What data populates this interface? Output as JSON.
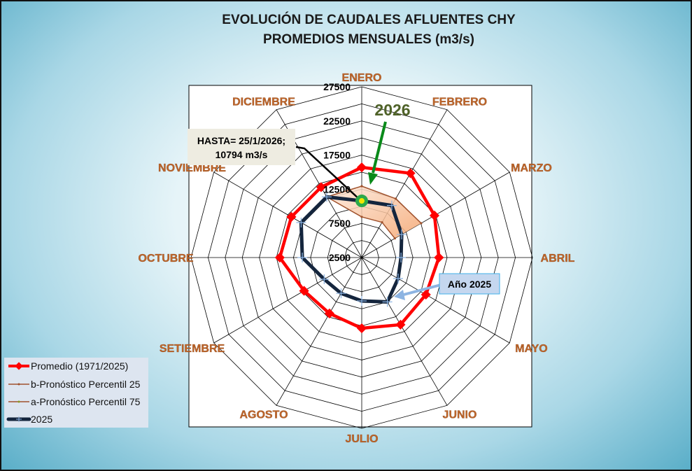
{
  "chart_data": {
    "type": "radar",
    "title": [
      "EVOLUCIÓN DE CAUDALES AFLUENTES CHY",
      "PROMEDIOS MENSUALES (m3/s)"
    ],
    "categories": [
      "ENERO",
      "FEBRERO",
      "MARZO",
      "ABRIL",
      "MAYO",
      "JUNIO",
      "JULIO",
      "AGOSTO",
      "SETIEMBRE",
      "OCTUBRE",
      "NOVIEMBRE",
      "DICIEMBRE"
    ],
    "rlim": [
      2500,
      27500
    ],
    "ring_step": 2500,
    "tick_labels": [
      "2500",
      "7500",
      "12500",
      "17500",
      "22500",
      "27500"
    ],
    "tick_values": [
      2500,
      7500,
      12500,
      17500,
      22500,
      27500
    ],
    "grid": true,
    "legend_position": "bottom-left",
    "series": [
      {
        "name": "Promedio (1971/2025)",
        "color": "#ff0000",
        "values": [
          15700,
          16750,
          14800,
          13800,
          13350,
          13850,
          12850,
          11950,
          12250,
          14500,
          14400,
          14400
        ]
      },
      {
        "name": "b-Pronóstico Percentil 25",
        "color": "#a0522d",
        "values": [
          8450,
          8450,
          8100,
          null,
          null,
          null,
          null,
          null,
          null,
          null,
          null,
          12750
        ]
      },
      {
        "name": "a-Pronóstico Percentil 75",
        "color": "#a0522d",
        "values": [
          12950,
          12450,
          12550,
          null,
          null,
          null,
          null,
          null,
          null,
          null,
          null,
          12750
        ]
      },
      {
        "name": "2025",
        "color": "#14253d",
        "values": [
          10800,
          11300,
          9250,
          8250,
          8650,
          10000,
          8850,
          8550,
          8850,
          11200,
          12750,
          12750
        ]
      }
    ],
    "current_point": {
      "month": "ENERO",
      "value": 10794
    },
    "annotations": {
      "hasta_line1": "HASTA= 25/1/2026;",
      "hasta_line2": "10794 m3/s",
      "label_2026": "2026",
      "label_2025": "Año 2025"
    }
  }
}
